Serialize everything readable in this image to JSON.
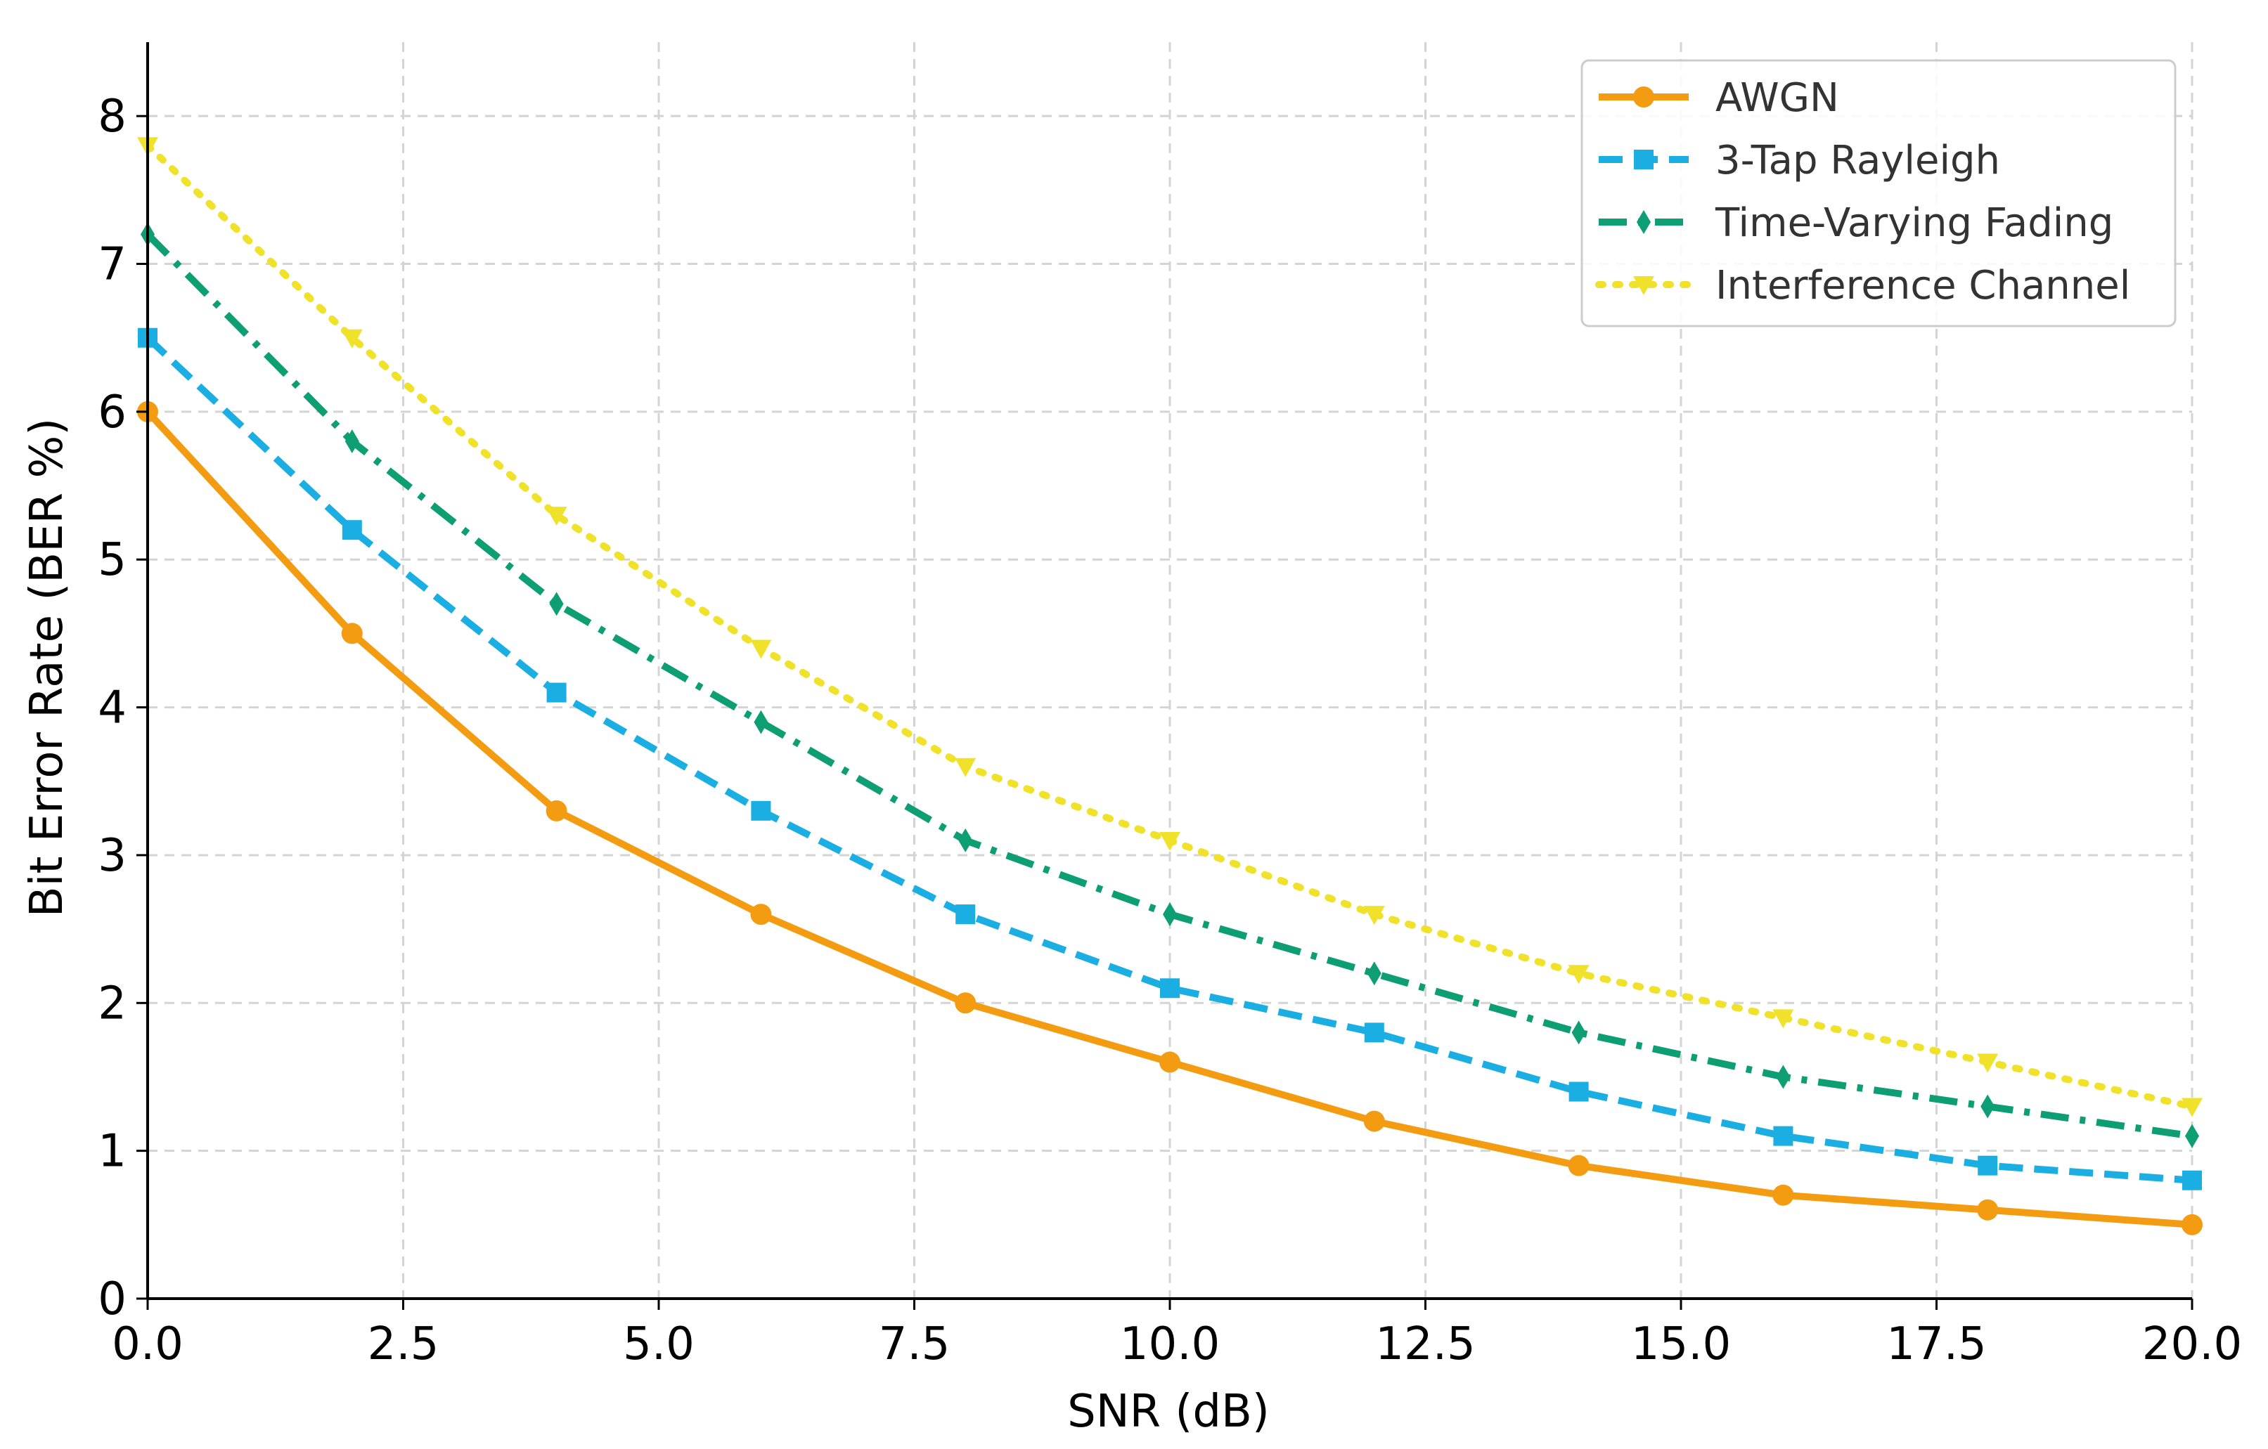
{
  "chart_data": {
    "type": "line",
    "title": "",
    "xlabel": "SNR (dB)",
    "ylabel": "Bit Error Rate (BER %)",
    "xlim": [
      0,
      20
    ],
    "ylim": [
      0,
      8.5
    ],
    "x_ticks": [
      "0.0",
      "2.5",
      "5.0",
      "7.5",
      "10.0",
      "12.5",
      "15.0",
      "17.5",
      "20.0"
    ],
    "y_ticks": [
      "0",
      "1",
      "2",
      "3",
      "4",
      "5",
      "6",
      "7",
      "8"
    ],
    "grid": true,
    "legend_position": "top-right",
    "x": [
      0,
      2,
      4,
      6,
      8,
      10,
      12,
      14,
      16,
      18,
      20
    ],
    "series": [
      {
        "name": "AWGN",
        "color": "#F39C12",
        "marker": "circle",
        "dash": "solid",
        "values": [
          6.0,
          4.5,
          3.3,
          2.6,
          2.0,
          1.6,
          1.2,
          0.9,
          0.7,
          0.6,
          0.5
        ]
      },
      {
        "name": "3-Tap Rayleigh",
        "color": "#1BAEE3",
        "marker": "square",
        "dash": "dashed",
        "values": [
          6.5,
          5.2,
          4.1,
          3.3,
          2.6,
          2.1,
          1.8,
          1.4,
          1.1,
          0.9,
          0.8
        ]
      },
      {
        "name": "Time-Varying Fading",
        "color": "#0E9E74",
        "marker": "diamond",
        "dash": "dashdot",
        "values": [
          7.2,
          5.8,
          4.7,
          3.9,
          3.1,
          2.6,
          2.2,
          1.8,
          1.5,
          1.3,
          1.1
        ]
      },
      {
        "name": "Interference Channel",
        "color": "#F0E22A",
        "marker": "triangle-down",
        "dash": "dotted",
        "values": [
          7.8,
          6.5,
          5.3,
          4.4,
          3.6,
          3.1,
          2.6,
          2.2,
          1.9,
          1.6,
          1.3
        ]
      }
    ]
  }
}
